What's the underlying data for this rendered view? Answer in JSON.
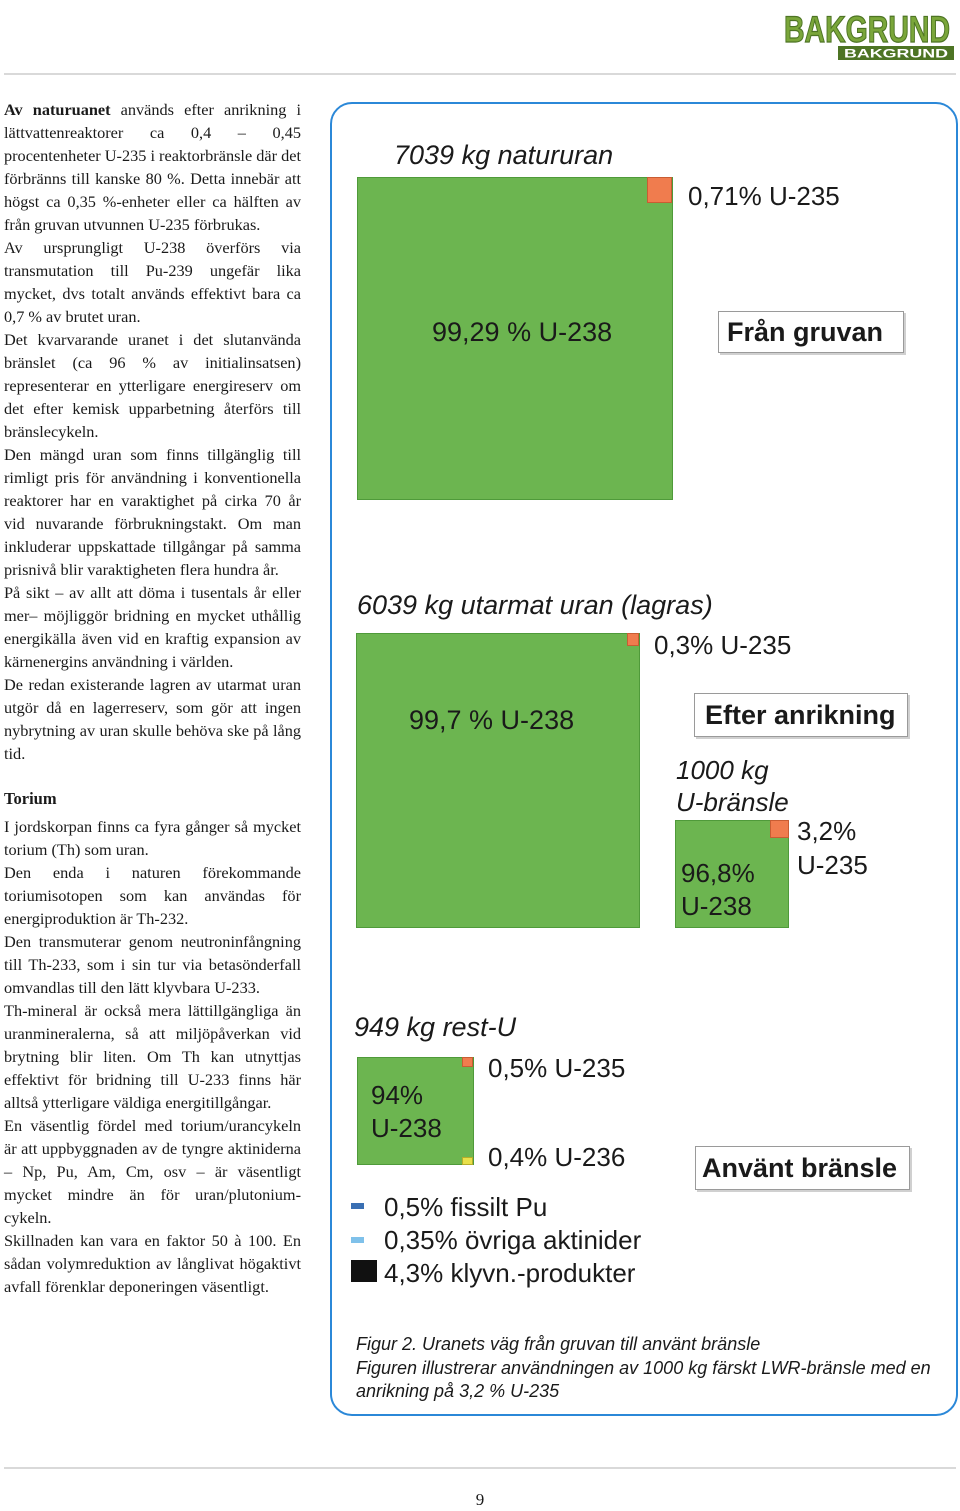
{
  "header": {
    "logo_text": "BAKGRUND",
    "logo_subtext": "BAKGRUND"
  },
  "body": {
    "p1_bold": "Av naturuanet",
    "p1_rest": " används efter anrikning i lättvattenreaktorer ca 0,4 – 0,45 procentenheter U-235 i reaktorbränsle där det förbränns till kanske 80 %. Detta innebär att högst ca 0,35 %-enheter eller ca hälften av från gruvan utvunnen U-235 förbrukas.",
    "p2": "Av ursprungligt U-238 överförs via transmutation till Pu-239 ungefär lika mycket, dvs totalt används effektivt bara ca 0,7 % av brutet uran.",
    "p3": "Det kvarvarande uranet i det slutanvända bränslet (ca 96 % av initialinsatsen) representerar en ytterligare energireserv om det efter kemisk upparbetning återförs till bränslecykeln.",
    "p4": "Den mängd uran som finns tillgänglig till rimligt pris för användning i konventionella reaktorer har en varaktighet på cirka 70 år vid nuvarande förbrukningstakt. Om man inkluderar uppskattade tillgångar på samma prisnivå blir varaktigheten flera hundra år.",
    "p5": "På sikt – av allt att döma i tusentals år eller mer– möjliggör bridning en mycket uthållig energikälla även vid en kraftig expansion av kärnenergins användning i världen.",
    "p6": "De redan existerande lagren av utarmat uran utgör då en lagerreserv, som gör att ingen nybrytning av uran skulle behöva ske på lång tid.",
    "torium_heading": "Torium",
    "p7": "I jordskorpan finns ca fyra gånger så mycket torium (Th) som uran.",
    "p8": "Den enda i naturen förekommande toriumisotopen som kan användas för energiproduktion är Th-232.",
    "p9": "Den transmuterar genom neutroninfångning till Th-233, som i sin tur via betasönderfall omvandlas till den lätt klyvbara U-233.",
    "p10": "Th-mineral är också mera lättillgängliga än uranmineralerna, så att miljöpåverkan vid brytning blir liten. Om Th kan utnyttjas effektivt för bridning till U-233 finns här alltså ytterligare väldiga energitillgångar.",
    "p11": "En väsentlig fördel med torium/urancykeln är att uppbyggnaden av de tyngre aktiniderna – Np, Pu, Am, Cm, osv – är väsentligt mycket mindre än för uran/plutonium-cykeln.",
    "p12": "Skillnaden kan vara en faktor 50 à 100. En sådan volymreduktion av långlivat högaktivt avfall förenklar deponeringen väsentligt."
  },
  "figure": {
    "natururan_title": "7039 kg natururan",
    "natururan_u235": "0,71% U-235",
    "natururan_u238": "99,29 % U-238",
    "fran_gruvan": "Från gruvan",
    "utarmat_title": "6039 kg utarmat uran (lagras)",
    "utarmat_u235": "0,3% U-235",
    "utarmat_u238": "99,7 % U-238",
    "efter_anrikning": "Efter anrikning",
    "ubransle_title_1": "1000 kg",
    "ubransle_title_2": "U-bränsle",
    "ubransle_u235_1": "3,2%",
    "ubransle_u235_2": "U-235",
    "ubransle_u238_1": "96,8%",
    "ubransle_u238_2": "U-238",
    "restu_title": "949 kg rest-U",
    "restu_u235": "0,5% U-235",
    "restu_u238_1": "94%",
    "restu_u238_2": "U-238",
    "restu_u236": "0,4% U-236",
    "anvant_bransle": "Använt bränsle",
    "legend_pu": "0,5% fissilt Pu",
    "legend_aktinider": "0,35% övriga aktinider",
    "legend_klyvn": "4,3% klyvn.-produkter",
    "caption_1": "Figur 2. Uranets väg från gruvan till använt bränsle",
    "caption_2": "Figuren illustrerar användningen av 1000 kg färskt LWR-bränsle med en anrikning på 3,2 % U-235",
    "colors": {
      "u238": "#6cb550",
      "u235": "#f07c4e",
      "u236": "#e8e04a",
      "pu": "#3a6fb3",
      "aktinider": "#7fc1ea",
      "klyvn": "#111111",
      "frame": "#2b88d8"
    }
  },
  "footer": {
    "page_number": "9"
  }
}
